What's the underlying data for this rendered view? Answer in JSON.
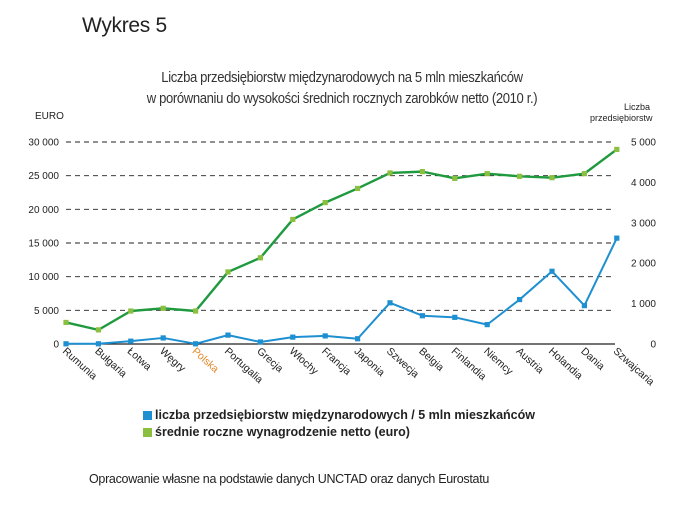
{
  "figure_label": "Wykres 5",
  "source_note": "Opracowanie własne na podstawie danych UNCTAD oraz danych Eurostatu",
  "chart_data": {
    "type": "line",
    "title_lines": [
      "Liczba przedsiębiorstw międzynarodowych na 5 mln mieszkańców",
      "w porównaniu do wysokości średnich rocznych zarobków netto (2010 r.)"
    ],
    "ylabel_left": "EURO",
    "ylabel_right_lines": [
      "Liczba",
      "przedsiębiorstw"
    ],
    "categories": [
      "Rumunia",
      "Bułgaria",
      "Łotwa",
      "Węgry",
      "Polska",
      "Portugalia",
      "Grecja",
      "Włochy",
      "Francja",
      "Japonia",
      "Szwecja",
      "Belgia",
      "Finlandia",
      "Niemcy",
      "Austria",
      "Holandia",
      "Dania",
      "Szwajcaria"
    ],
    "highlight_category": "Polska",
    "highlight_color": "#e0882a",
    "left_axis": {
      "ylim": [
        0,
        30000
      ],
      "ticks": [
        0,
        5000,
        10000,
        15000,
        20000,
        25000,
        30000
      ],
      "tick_labels": [
        "0",
        "5 000",
        "10 000",
        "15 000",
        "20 000",
        "25 000",
        "30 000"
      ]
    },
    "right_axis": {
      "ylim": [
        0,
        5000
      ],
      "ticks": [
        0,
        1000,
        2000,
        3000,
        4000,
        5000
      ],
      "tick_labels": [
        "0",
        "1 000",
        "2 000",
        "3 000",
        "4 000",
        "5 000"
      ]
    },
    "grid": "dashed-horizontal",
    "legend_position": "bottom",
    "series": [
      {
        "name": "liczba przedsiębiorstw międzynarodowych / 5 mln mieszkańców",
        "axis": "right",
        "color": "#1e8fd0",
        "values": [
          5,
          5,
          70,
          150,
          5,
          220,
          50,
          170,
          200,
          130,
          1020,
          700,
          660,
          480,
          1100,
          1800,
          950,
          2620
        ]
      },
      {
        "name": "średnie roczne wynagrodzenie netto (euro)",
        "axis": "left",
        "color": "#1f9a3e",
        "marker_color": "#8bbf3f",
        "values": [
          3200,
          2100,
          4900,
          5300,
          4900,
          10700,
          12800,
          18500,
          21000,
          23100,
          25400,
          25600,
          24600,
          25300,
          24900,
          24700,
          25300,
          28900
        ]
      }
    ]
  }
}
